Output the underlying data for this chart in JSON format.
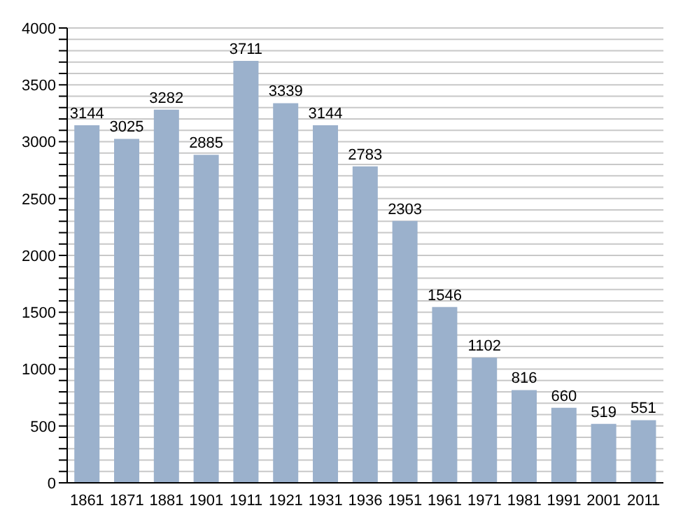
{
  "chart_data": {
    "type": "bar",
    "categories": [
      "1861",
      "1871",
      "1881",
      "1901",
      "1911",
      "1921",
      "1931",
      "1936",
      "1951",
      "1961",
      "1971",
      "1981",
      "1991",
      "2001",
      "2011"
    ],
    "values": [
      3144,
      3025,
      3282,
      2885,
      3711,
      3339,
      3144,
      2783,
      2303,
      1546,
      1102,
      816,
      660,
      519,
      551
    ],
    "color": "#9bb1cc",
    "ylim": [
      0,
      4000
    ],
    "yticks": [
      0,
      {
        "value": 100,
        "label": null
      },
      {
        "value": 200,
        "label": null
      },
      {
        "value": 300,
        "label": null
      },
      {
        "value": 400,
        "label": null
      },
      500,
      {
        "value": 600,
        "label": null
      },
      {
        "value": 700,
        "label": null
      },
      {
        "value": 800,
        "label": null
      },
      {
        "value": 900,
        "label": null
      },
      1000,
      {
        "value": 1100,
        "label": null
      },
      {
        "value": 1200,
        "label": null
      },
      {
        "value": 1300,
        "label": null
      },
      {
        "value": 1400,
        "label": null
      },
      1500,
      {
        "value": 1600,
        "label": null
      },
      {
        "value": 1700,
        "label": null
      },
      {
        "value": 1800,
        "label": null
      },
      {
        "value": 1900,
        "label": null
      },
      2000,
      {
        "value": 2100,
        "label": null
      },
      {
        "value": 2200,
        "label": null
      },
      {
        "value": 2300,
        "label": null
      },
      {
        "value": 2400,
        "label": null
      },
      2500,
      {
        "value": 2600,
        "label": null
      },
      {
        "value": 2700,
        "label": null
      },
      {
        "value": 2800,
        "label": null
      },
      {
        "value": 2900,
        "label": null
      },
      3000,
      {
        "value": 3100,
        "label": null
      },
      {
        "value": 3200,
        "label": null
      },
      {
        "value": 3300,
        "label": null
      },
      {
        "value": 3400,
        "label": null
      },
      3500,
      {
        "value": 3600,
        "label": null
      },
      {
        "value": 3700,
        "label": null
      },
      {
        "value": 3800,
        "label": null
      },
      {
        "value": 3900,
        "label": null
      },
      4000
    ],
    "grid": "y",
    "data_labels": true
  }
}
